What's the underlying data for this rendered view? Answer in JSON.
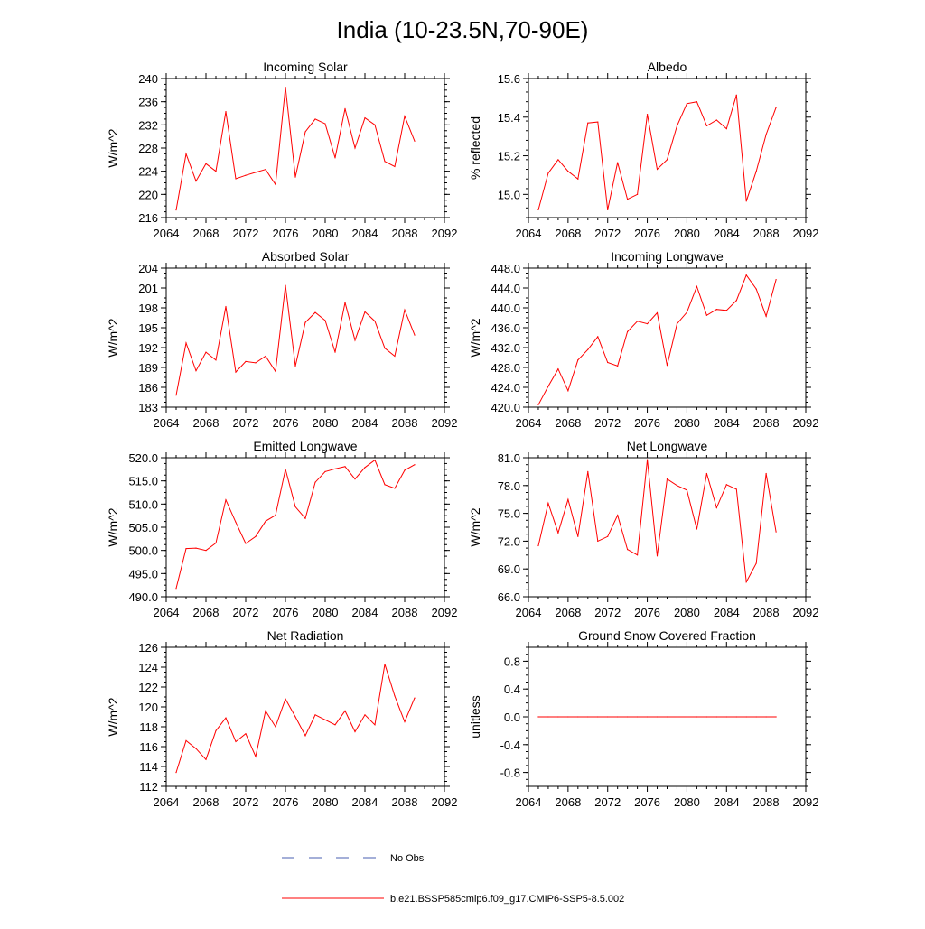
{
  "page": {
    "title": "India (10-23.5N,70-90E)"
  },
  "colors": {
    "series": "#ff0000",
    "obs": "#4a5fb0",
    "axis": "#000000"
  },
  "legend": {
    "obs_label": "No Obs",
    "model_label": "b.e21.BSSP585cmip6.f09_g17.CMIP6-SSP5-8.5.002"
  },
  "chart_data": [
    {
      "type": "line",
      "title": "Incoming Solar",
      "ylabel": "W/m^2",
      "xlim": [
        2064,
        2092
      ],
      "ylim": [
        216,
        240
      ],
      "xticks": [
        "2064",
        "2068",
        "2072",
        "2076",
        "2080",
        "2084",
        "2088",
        "2092"
      ],
      "yticks": [
        "216",
        "220",
        "224",
        "228",
        "232",
        "236",
        "240"
      ],
      "x": [
        2065,
        2066,
        2067,
        2068,
        2069,
        2070,
        2071,
        2072,
        2073,
        2074,
        2075,
        2076,
        2077,
        2078,
        2079,
        2080,
        2081,
        2082,
        2083,
        2084,
        2085,
        2086,
        2087,
        2088,
        2089
      ],
      "series": [
        {
          "values": [
            217.3,
            227.0,
            222.3,
            225.3,
            224.0,
            234.3,
            222.7,
            223.3,
            223.8,
            224.3,
            221.7,
            238.5,
            223.0,
            230.8,
            233.0,
            232.2,
            226.3,
            234.8,
            228.0,
            233.2,
            232.0,
            225.7,
            224.8,
            233.5,
            229.2
          ]
        }
      ]
    },
    {
      "type": "line",
      "title": "Albedo",
      "ylabel": "% reflected",
      "xlim": [
        2064,
        2092
      ],
      "ylim": [
        14.88,
        15.6
      ],
      "xticks": [
        "2064",
        "2068",
        "2072",
        "2076",
        "2080",
        "2084",
        "2088",
        "2092"
      ],
      "yticks": [
        "15.0",
        "15.2",
        "15.4",
        "15.6"
      ],
      "ytick_values": [
        15.0,
        15.2,
        15.4,
        15.6
      ],
      "x": [
        2065,
        2066,
        2067,
        2068,
        2069,
        2070,
        2071,
        2072,
        2073,
        2074,
        2075,
        2076,
        2077,
        2078,
        2079,
        2080,
        2081,
        2082,
        2083,
        2084,
        2085,
        2086,
        2087,
        2088,
        2089
      ],
      "series": [
        {
          "values": [
            14.92,
            15.11,
            15.18,
            15.12,
            15.08,
            15.37,
            15.375,
            14.92,
            15.165,
            14.975,
            15.0,
            15.415,
            15.13,
            15.18,
            15.355,
            15.47,
            15.48,
            15.355,
            15.385,
            15.34,
            15.515,
            14.965,
            15.12,
            15.31,
            15.45
          ]
        }
      ]
    },
    {
      "type": "line",
      "title": "Absorbed Solar",
      "ylabel": "W/m^2",
      "xlim": [
        2064,
        2092
      ],
      "ylim": [
        183,
        204
      ],
      "xticks": [
        "2064",
        "2068",
        "2072",
        "2076",
        "2080",
        "2084",
        "2088",
        "2092"
      ],
      "yticks": [
        "183",
        "186",
        "189",
        "192",
        "195",
        "198",
        "201",
        "204"
      ],
      "x": [
        2065,
        2066,
        2067,
        2068,
        2069,
        2070,
        2071,
        2072,
        2073,
        2074,
        2075,
        2076,
        2077,
        2078,
        2079,
        2080,
        2081,
        2082,
        2083,
        2084,
        2085,
        2086,
        2087,
        2088,
        2089
      ],
      "series": [
        {
          "values": [
            184.8,
            192.7,
            188.5,
            191.3,
            190.1,
            198.2,
            188.3,
            189.9,
            189.7,
            190.7,
            188.4,
            201.4,
            189.2,
            195.8,
            197.3,
            196.1,
            191.3,
            198.8,
            193.1,
            197.4,
            196.0,
            191.9,
            190.7,
            197.7,
            193.9
          ]
        }
      ]
    },
    {
      "type": "line",
      "title": "Incoming Longwave",
      "ylabel": "W/m^2",
      "xlim": [
        2064,
        2092
      ],
      "ylim": [
        420,
        448
      ],
      "xticks": [
        "2064",
        "2068",
        "2072",
        "2076",
        "2080",
        "2084",
        "2088",
        "2092"
      ],
      "yticks": [
        "420.0",
        "424.0",
        "428.0",
        "432.0",
        "436.0",
        "440.0",
        "444.0",
        "448.0"
      ],
      "ytick_values": [
        420,
        424,
        428,
        432,
        436,
        440,
        444,
        448
      ],
      "x": [
        2065,
        2066,
        2067,
        2068,
        2069,
        2070,
        2071,
        2072,
        2073,
        2074,
        2075,
        2076,
        2077,
        2078,
        2079,
        2080,
        2081,
        2082,
        2083,
        2084,
        2085,
        2086,
        2087,
        2088,
        2089
      ],
      "series": [
        {
          "values": [
            420.5,
            424.2,
            427.7,
            423.3,
            429.5,
            431.6,
            434.2,
            429.0,
            428.3,
            435.2,
            437.3,
            436.8,
            439.0,
            428.4,
            436.8,
            439.1,
            444.3,
            438.5,
            439.7,
            439.5,
            441.5,
            446.6,
            443.8,
            438.3,
            445.7
          ]
        }
      ]
    },
    {
      "type": "line",
      "title": "Emitted Longwave",
      "ylabel": "W/m^2",
      "xlim": [
        2064,
        2092
      ],
      "ylim": [
        490,
        520
      ],
      "xticks": [
        "2064",
        "2068",
        "2072",
        "2076",
        "2080",
        "2084",
        "2088",
        "2092"
      ],
      "yticks": [
        "490.0",
        "495.0",
        "500.0",
        "505.0",
        "510.0",
        "515.0",
        "520.0"
      ],
      "ytick_values": [
        490,
        495,
        500,
        505,
        510,
        515,
        520
      ],
      "x": [
        2065,
        2066,
        2067,
        2068,
        2069,
        2070,
        2071,
        2072,
        2073,
        2074,
        2075,
        2076,
        2077,
        2078,
        2079,
        2080,
        2081,
        2082,
        2083,
        2084,
        2085,
        2086,
        2087,
        2088,
        2089
      ],
      "series": [
        {
          "values": [
            491.8,
            500.4,
            500.5,
            500.0,
            501.6,
            510.9,
            506.1,
            501.5,
            503.0,
            506.3,
            507.6,
            517.5,
            509.4,
            506.9,
            514.7,
            517.0,
            517.6,
            518.1,
            515.4,
            517.9,
            519.5,
            514.2,
            513.4,
            517.3,
            518.5
          ]
        }
      ]
    },
    {
      "type": "line",
      "title": "Net Longwave",
      "ylabel": "W/m^2",
      "xlim": [
        2064,
        2092
      ],
      "ylim": [
        66,
        81
      ],
      "xticks": [
        "2064",
        "2068",
        "2072",
        "2076",
        "2080",
        "2084",
        "2088",
        "2092"
      ],
      "yticks": [
        "66.0",
        "69.0",
        "72.0",
        "75.0",
        "78.0",
        "81.0"
      ],
      "ytick_values": [
        66,
        69,
        72,
        75,
        78,
        81
      ],
      "x": [
        2065,
        2066,
        2067,
        2068,
        2069,
        2070,
        2071,
        2072,
        2073,
        2074,
        2075,
        2076,
        2077,
        2078,
        2079,
        2080,
        2081,
        2082,
        2083,
        2084,
        2085,
        2086,
        2087,
        2088,
        2089
      ],
      "series": [
        {
          "values": [
            71.5,
            76.1,
            72.9,
            76.5,
            72.5,
            79.5,
            72.0,
            72.5,
            74.8,
            71.1,
            70.5,
            80.8,
            70.4,
            78.7,
            78.0,
            77.5,
            73.3,
            79.3,
            75.6,
            78.1,
            77.6,
            67.6,
            69.6,
            79.3,
            73.0
          ]
        }
      ]
    },
    {
      "type": "line",
      "title": "Net Radiation",
      "ylabel": "W/m^2",
      "xlim": [
        2064,
        2092
      ],
      "ylim": [
        112,
        126
      ],
      "xticks": [
        "2064",
        "2068",
        "2072",
        "2076",
        "2080",
        "2084",
        "2088",
        "2092"
      ],
      "yticks": [
        "112",
        "114",
        "116",
        "118",
        "120",
        "122",
        "124",
        "126"
      ],
      "x": [
        2065,
        2066,
        2067,
        2068,
        2069,
        2070,
        2071,
        2072,
        2073,
        2074,
        2075,
        2076,
        2077,
        2078,
        2079,
        2080,
        2081,
        2082,
        2083,
        2084,
        2085,
        2086,
        2087,
        2088,
        2089
      ],
      "series": [
        {
          "values": [
            113.4,
            116.6,
            115.8,
            114.7,
            117.6,
            118.9,
            116.5,
            117.3,
            115.0,
            119.6,
            118.0,
            120.8,
            119.0,
            117.1,
            119.2,
            118.7,
            118.2,
            119.6,
            117.5,
            119.2,
            118.2,
            124.3,
            121.1,
            118.5,
            120.9
          ]
        }
      ]
    },
    {
      "type": "line",
      "title": "Ground Snow Covered Fraction",
      "ylabel": "unitless",
      "xlim": [
        2064,
        2092
      ],
      "ylim": [
        -1.0,
        1.0
      ],
      "xticks": [
        "2064",
        "2068",
        "2072",
        "2076",
        "2080",
        "2084",
        "2088",
        "2092"
      ],
      "yticks": [
        "-0.8",
        "-0.4",
        "0.0",
        "0.4",
        "0.8"
      ],
      "ytick_values": [
        -0.8,
        -0.4,
        0.0,
        0.4,
        0.8
      ],
      "x": [
        2065,
        2066,
        2067,
        2068,
        2069,
        2070,
        2071,
        2072,
        2073,
        2074,
        2075,
        2076,
        2077,
        2078,
        2079,
        2080,
        2081,
        2082,
        2083,
        2084,
        2085,
        2086,
        2087,
        2088,
        2089
      ],
      "series": [
        {
          "values": [
            0,
            0,
            0,
            0,
            0,
            0,
            0,
            0,
            0,
            0,
            0,
            0,
            0,
            0,
            0,
            0,
            0,
            0,
            0,
            0,
            0,
            0,
            0,
            0,
            0
          ]
        }
      ]
    }
  ]
}
